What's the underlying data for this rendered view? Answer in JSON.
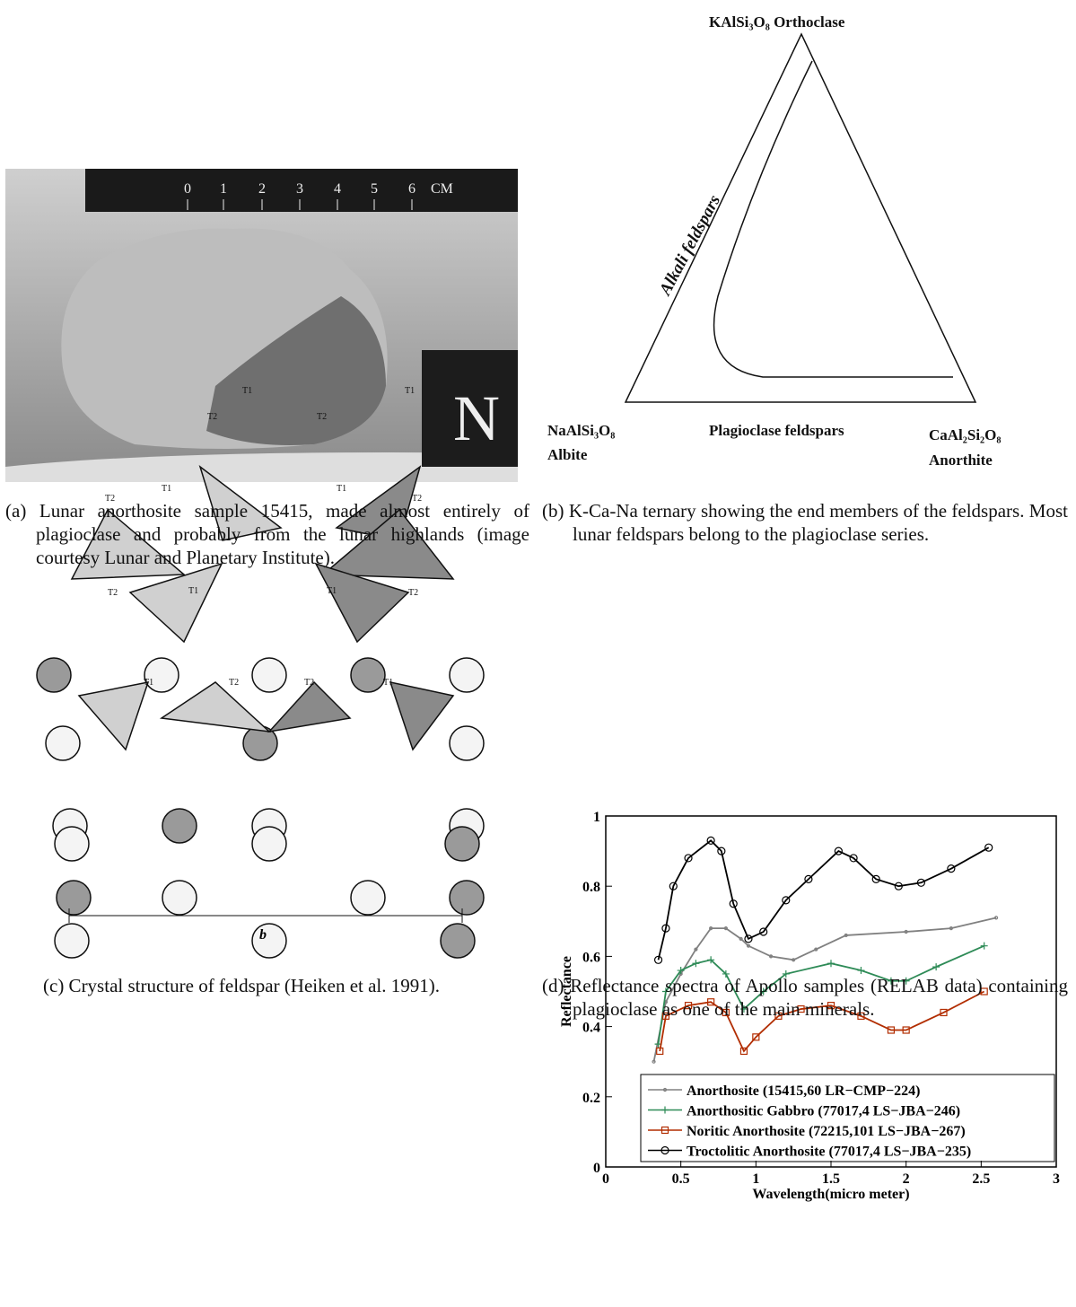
{
  "panels": [
    {
      "caption": "(a) Lunar anorthosite sample 15415, made almost entirely of plagioclase and probably from the lunar highlands (image courtesy Lunar and Planetary Institute).",
      "ruler_labels": [
        "0",
        "1",
        "2",
        "3",
        "4",
        "5",
        "6",
        "CM"
      ],
      "tag": "N"
    },
    {
      "caption": "(b) K-Ca-Na ternary showing the end members of the feldspars. Most lunar feldspars belong to the plagioclase series.",
      "top_label": "KAlSi₃O₈ Orthoclase",
      "side_label": "Alkali feldspars",
      "left_formula": "NaAlSi₃O₈",
      "left_name": "Albite",
      "base_label": "Plagioclase feldspars",
      "right_formula": "CaAl₂Si₂O₈",
      "right_name": "Anorthite"
    },
    {
      "caption": "(c) Crystal structure of feldspar (Heiken et al. 1991).",
      "site_labels": [
        "T1",
        "T2",
        "T2",
        "T1",
        "T2",
        "T1",
        "T1",
        "T2",
        "T2",
        "T1",
        "T1",
        "T2",
        "T1",
        "T2",
        "T2",
        "T1"
      ],
      "axis_label": "b"
    },
    {
      "caption": "(d) Reflectance spectra of Apollo samples (RELAB data) containing plagioclase as one of the main minerals."
    }
  ],
  "chart_data": {
    "type": "line",
    "xlabel": "Wavelength(micro meter)",
    "ylabel": "Reflectance",
    "xlim": [
      0,
      3
    ],
    "ylim": [
      0,
      1
    ],
    "xticks": [
      0,
      0.5,
      1,
      1.5,
      2,
      2.5,
      3
    ],
    "yticks": [
      0,
      0.2,
      0.4,
      0.6,
      0.8,
      1
    ],
    "series": [
      {
        "name": "Anorthosite (15415,60 LR−CMP−224)",
        "color": "#808080",
        "marker": "dot",
        "x": [
          0.32,
          0.4,
          0.5,
          0.6,
          0.7,
          0.8,
          0.9,
          0.95,
          1.1,
          1.25,
          1.4,
          1.6,
          2.0,
          2.3,
          2.6
        ],
        "values": [
          0.3,
          0.47,
          0.55,
          0.62,
          0.68,
          0.68,
          0.65,
          0.63,
          0.6,
          0.59,
          0.62,
          0.66,
          0.67,
          0.68,
          0.71
        ]
      },
      {
        "name": "Anorthositic Gabbro (77017,4 LS−JBA−246)",
        "color": "#2e8b57",
        "marker": "plus",
        "x": [
          0.35,
          0.4,
          0.5,
          0.6,
          0.7,
          0.8,
          0.92,
          1.05,
          1.2,
          1.5,
          1.7,
          1.9,
          2.0,
          2.2,
          2.52
        ],
        "values": [
          0.35,
          0.5,
          0.56,
          0.58,
          0.59,
          0.55,
          0.45,
          0.5,
          0.55,
          0.58,
          0.56,
          0.53,
          0.53,
          0.57,
          0.63
        ]
      },
      {
        "name": "Noritic Anorthosite (72215,101 LS−JBA−267)",
        "color": "#b22d00",
        "marker": "square",
        "x": [
          0.36,
          0.4,
          0.55,
          0.7,
          0.8,
          0.92,
          1.0,
          1.15,
          1.3,
          1.5,
          1.7,
          1.9,
          2.0,
          2.25,
          2.52
        ],
        "values": [
          0.33,
          0.43,
          0.46,
          0.47,
          0.44,
          0.33,
          0.37,
          0.43,
          0.45,
          0.46,
          0.43,
          0.39,
          0.39,
          0.44,
          0.5
        ]
      },
      {
        "name": "Troctolitic Anorthosite (77017,4 LS−JBA−235)",
        "color": "#000000",
        "marker": "circle",
        "x": [
          0.35,
          0.4,
          0.45,
          0.55,
          0.7,
          0.77,
          0.85,
          0.95,
          1.05,
          1.2,
          1.35,
          1.55,
          1.65,
          1.8,
          1.95,
          2.1,
          2.3,
          2.55
        ],
        "values": [
          0.59,
          0.68,
          0.8,
          0.88,
          0.93,
          0.9,
          0.75,
          0.65,
          0.67,
          0.76,
          0.82,
          0.9,
          0.88,
          0.82,
          0.8,
          0.81,
          0.85,
          0.91
        ]
      }
    ]
  }
}
